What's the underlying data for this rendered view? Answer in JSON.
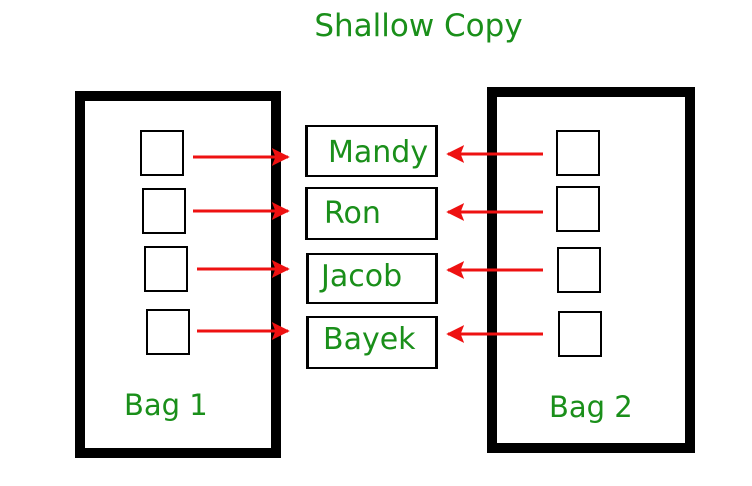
{
  "title": "Shallow Copy",
  "bag1": {
    "label": "Bag 1"
  },
  "bag2": {
    "label": "Bag 2"
  },
  "names": [
    "Mandy",
    "Ron",
    "Jacob",
    "Bayek"
  ],
  "colors": {
    "text": "#1a8f1a",
    "arrow": "#ee1111",
    "outline": "#000000"
  }
}
